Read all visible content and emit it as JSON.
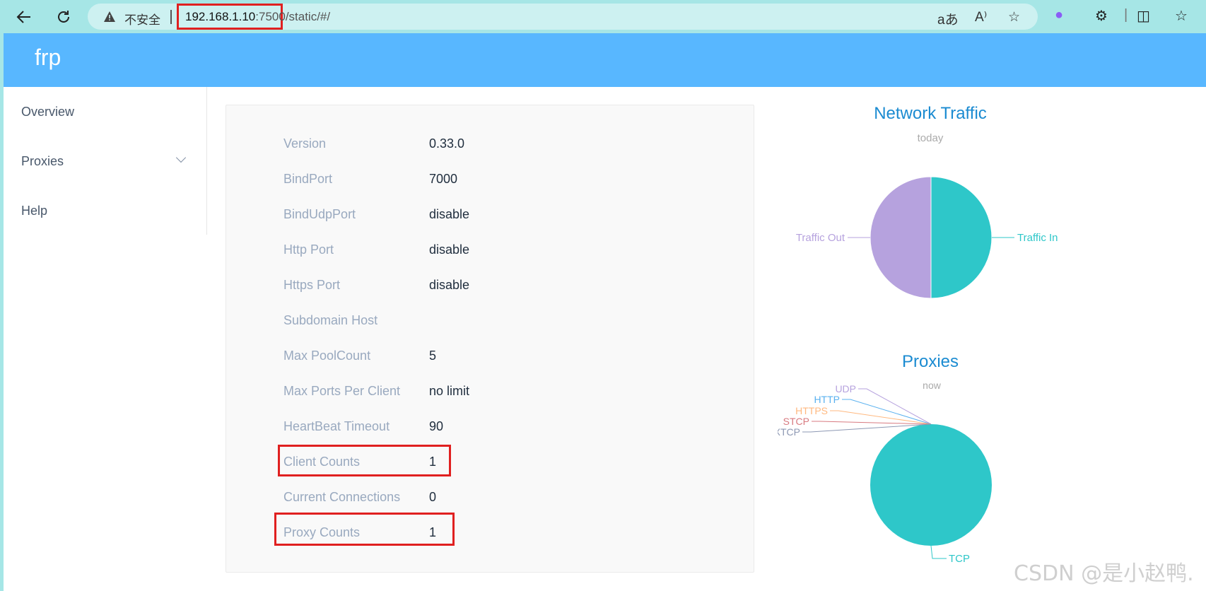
{
  "browser": {
    "insecure_label": "不安全",
    "url_host": "192.168.1.10",
    "url_port": ":7500",
    "url_path": "/static/#/"
  },
  "app": {
    "title": "frp"
  },
  "sidebar": {
    "items": [
      {
        "label": "Overview"
      },
      {
        "label": "Proxies"
      },
      {
        "label": "Help"
      }
    ]
  },
  "server_info": [
    {
      "label": "Version",
      "value": "0.33.0"
    },
    {
      "label": "BindPort",
      "value": "7000"
    },
    {
      "label": "BindUdpPort",
      "value": "disable"
    },
    {
      "label": "Http Port",
      "value": "disable"
    },
    {
      "label": "Https Port",
      "value": "disable"
    },
    {
      "label": "Subdomain Host",
      "value": ""
    },
    {
      "label": "Max PoolCount",
      "value": "5"
    },
    {
      "label": "Max Ports Per Client",
      "value": "no limit"
    },
    {
      "label": "HeartBeat Timeout",
      "value": "90"
    },
    {
      "label": "Client Counts",
      "value": "1"
    },
    {
      "label": "Current Connections",
      "value": "0"
    },
    {
      "label": "Proxy Counts",
      "value": "1"
    }
  ],
  "chart_data": [
    {
      "type": "pie",
      "title": "Network Traffic",
      "subtitle": "today",
      "categories": [
        "Traffic In",
        "Traffic Out"
      ],
      "values": [
        50,
        50
      ],
      "colors": [
        "#2ec7c9",
        "#b6a2de"
      ]
    },
    {
      "type": "pie",
      "title": "Proxies",
      "subtitle": "now",
      "categories": [
        "TCP",
        "UDP",
        "HTTP",
        "HTTPS",
        "STCP",
        "XTCP"
      ],
      "values": [
        1,
        0,
        0,
        0,
        0,
        0
      ],
      "colors": [
        "#2ec7c9",
        "#b6a2de",
        "#5ab1ef",
        "#ffb980",
        "#d87a80",
        "#8d98b3"
      ]
    }
  ],
  "watermark": "CSDN @是小赵鸭."
}
